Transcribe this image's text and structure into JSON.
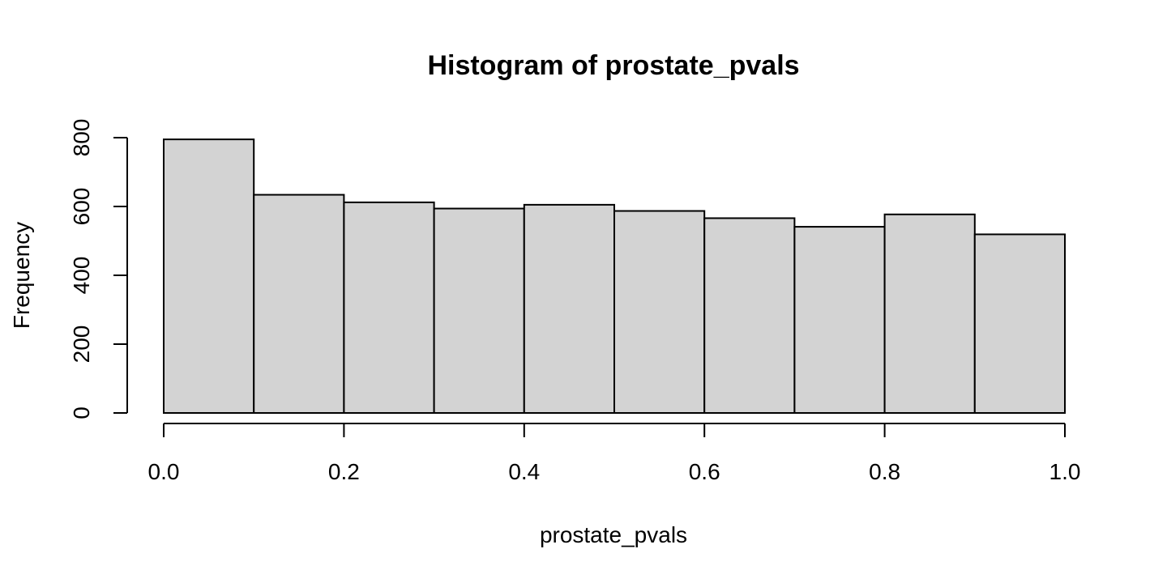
{
  "chart_data": {
    "type": "bar",
    "title": "Histogram of prostate_pvals",
    "xlabel": "prostate_pvals",
    "ylabel": "Frequency",
    "bins": [
      {
        "start": 0.0,
        "end": 0.1,
        "count": 795
      },
      {
        "start": 0.1,
        "end": 0.2,
        "count": 634
      },
      {
        "start": 0.2,
        "end": 0.3,
        "count": 612
      },
      {
        "start": 0.3,
        "end": 0.4,
        "count": 594
      },
      {
        "start": 0.4,
        "end": 0.5,
        "count": 605
      },
      {
        "start": 0.5,
        "end": 0.6,
        "count": 587
      },
      {
        "start": 0.6,
        "end": 0.7,
        "count": 566
      },
      {
        "start": 0.7,
        "end": 0.8,
        "count": 541
      },
      {
        "start": 0.8,
        "end": 0.9,
        "count": 577
      },
      {
        "start": 0.9,
        "end": 1.0,
        "count": 519
      }
    ],
    "xlim": [
      0,
      1
    ],
    "ylim": [
      0,
      800
    ],
    "x_ticks": [
      "0.0",
      "0.2",
      "0.4",
      "0.6",
      "0.8",
      "1.0"
    ],
    "y_ticks": [
      "0",
      "200",
      "400",
      "600",
      "800"
    ],
    "grid": false,
    "colors": {
      "bar_fill": "#d3d3d3",
      "bar_stroke": "#000000"
    }
  }
}
